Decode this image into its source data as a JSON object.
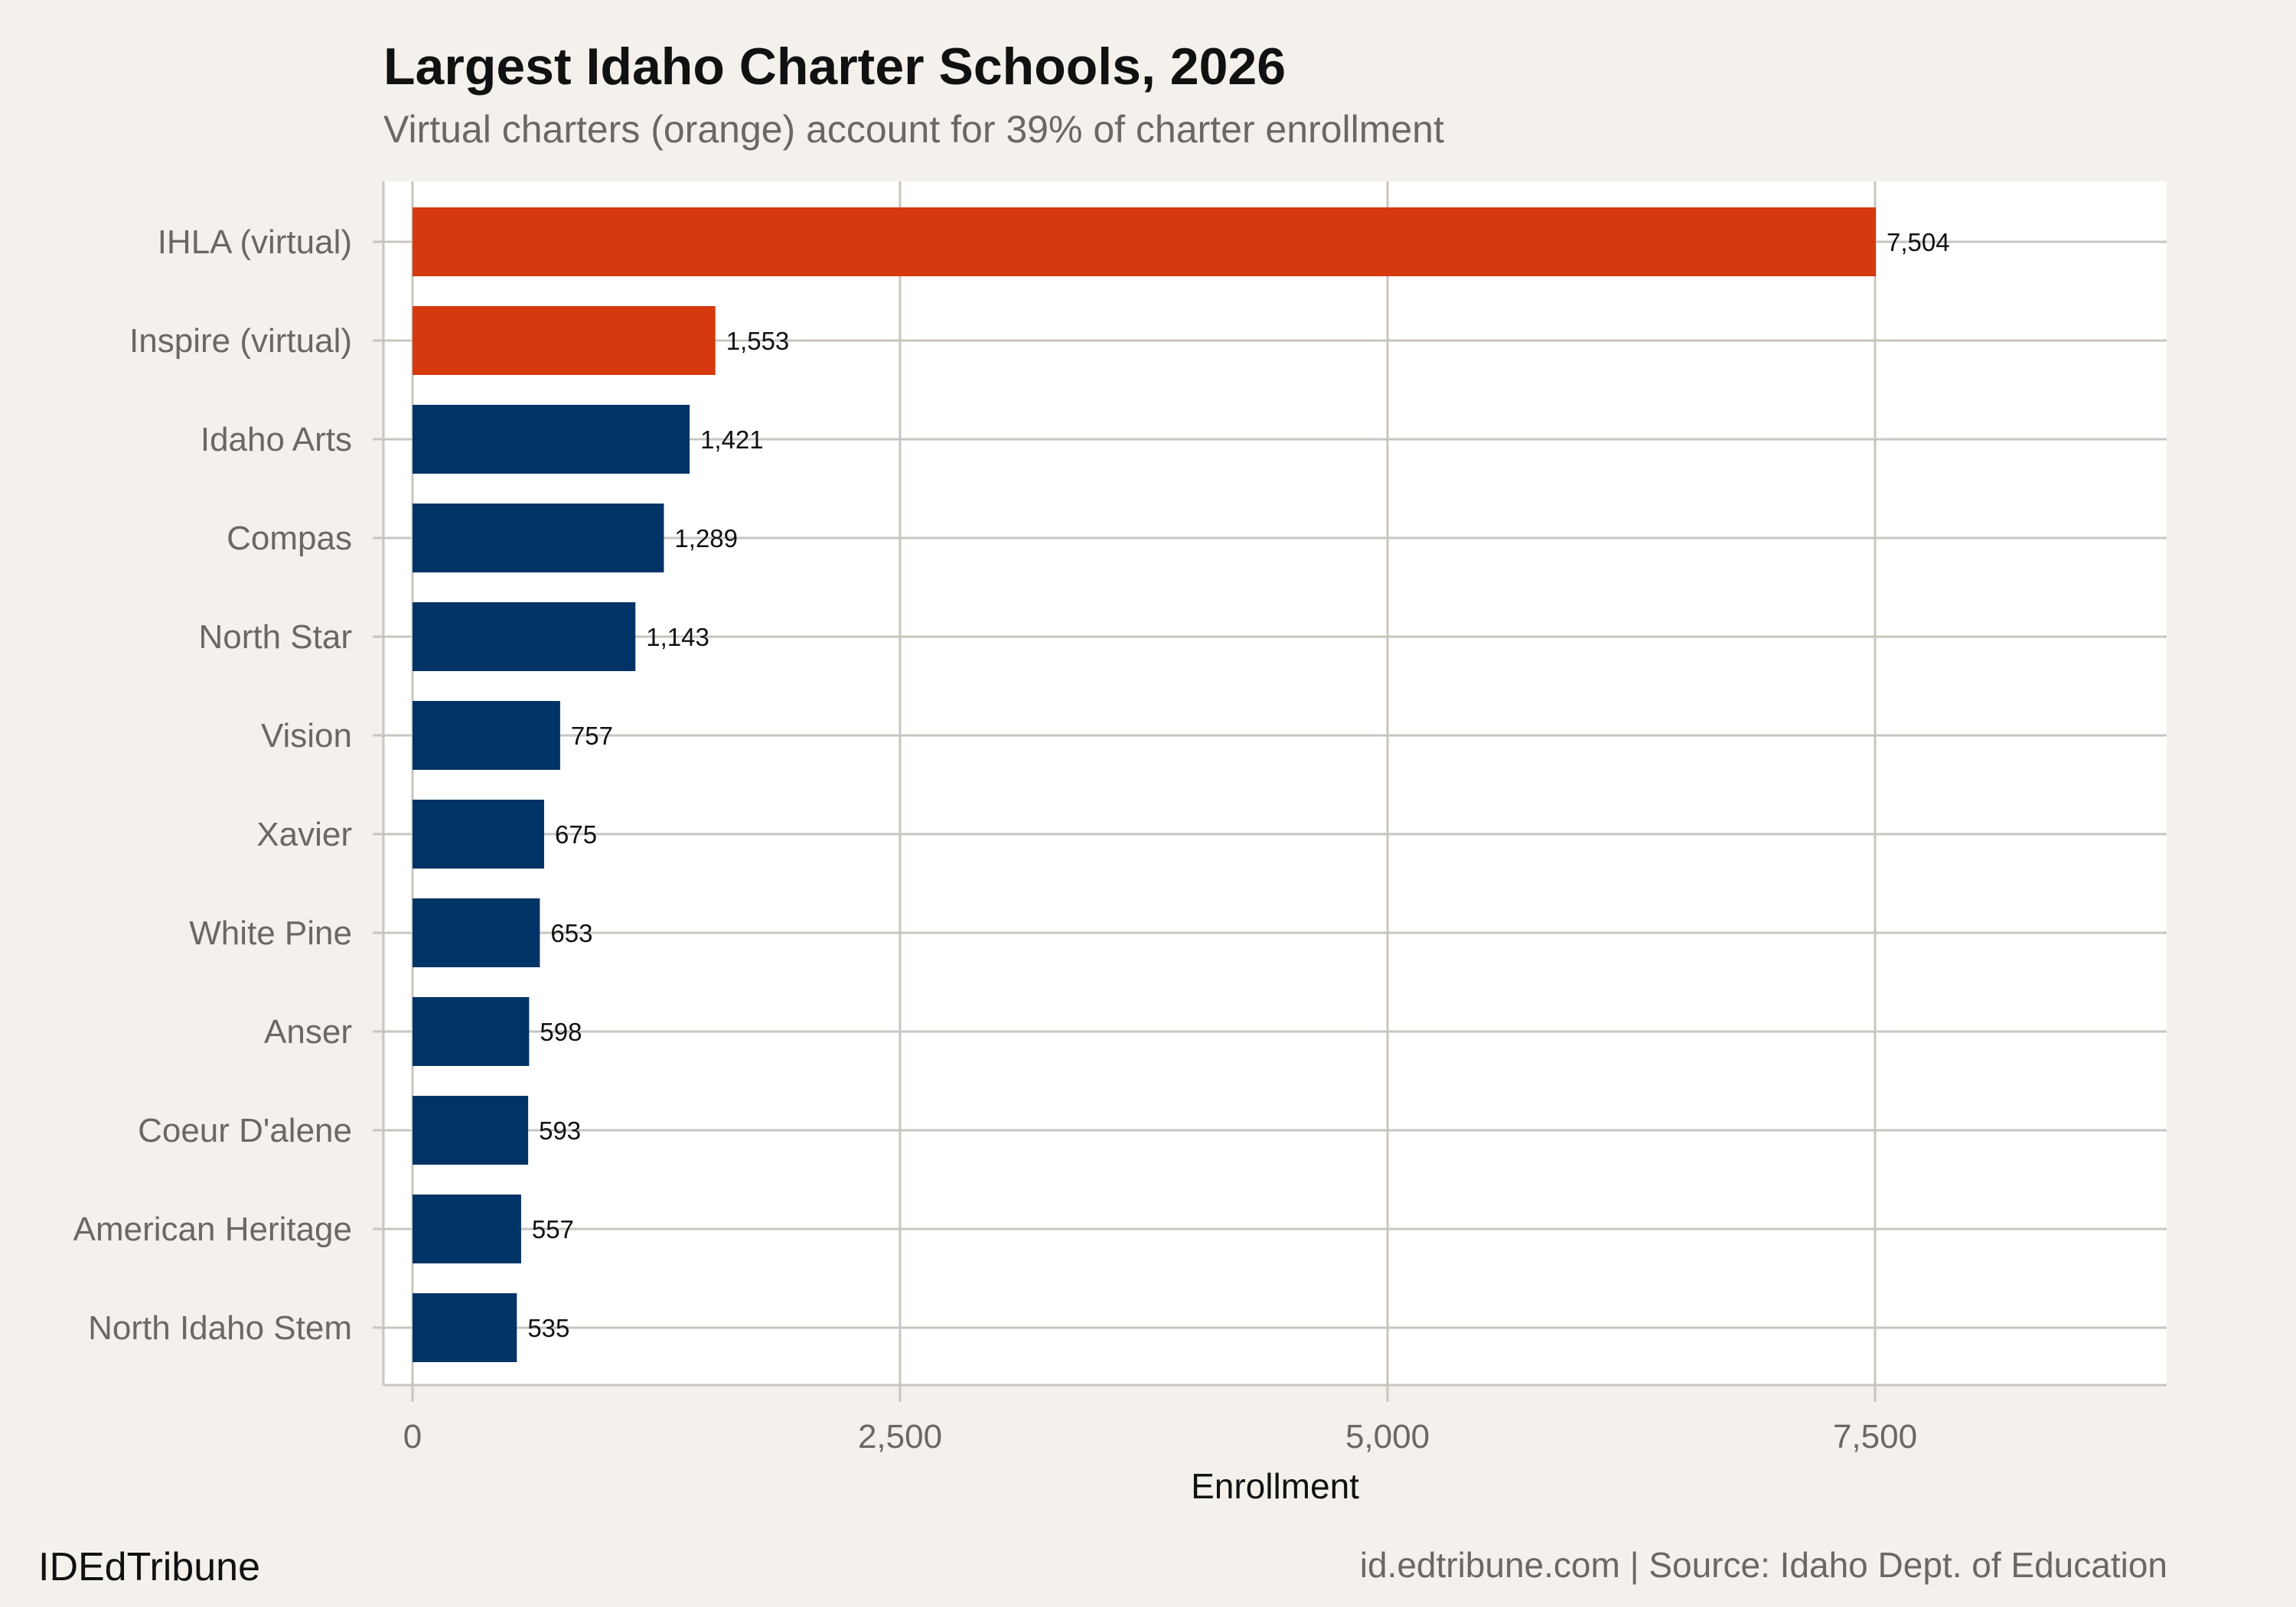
{
  "chart_data": {
    "type": "bar",
    "orientation": "horizontal",
    "title": "Largest Idaho Charter Schools, 2026",
    "subtitle": "Virtual charters (orange) account for 39% of charter enrollment",
    "xlabel": "Enrollment",
    "ylabel": "",
    "categories": [
      "IHLA (virtual)",
      "Inspire (virtual)",
      "Idaho Arts",
      "Compas",
      "North Star",
      "Vision",
      "Xavier",
      "White Pine",
      "Anser",
      "Coeur D'alene",
      "American Heritage",
      "North Idaho Stem"
    ],
    "values": [
      7504,
      1553,
      1421,
      1289,
      1143,
      757,
      675,
      653,
      598,
      593,
      557,
      535
    ],
    "value_labels": [
      "7,504",
      "1,553",
      "1,421",
      "1,289",
      "1,143",
      "757",
      "675",
      "653",
      "598",
      "593",
      "557",
      "535"
    ],
    "virtual": [
      true,
      true,
      false,
      false,
      false,
      false,
      false,
      false,
      false,
      false,
      false,
      false
    ],
    "xticks": [
      0,
      2500,
      5000,
      7500
    ],
    "xtick_labels": [
      "0",
      "2,500",
      "5,000",
      "7,500"
    ],
    "xlim": [
      0,
      9000
    ],
    "grid": true,
    "legend": "none",
    "colors": {
      "virtual": "#D5390E",
      "other": "#003366",
      "background": "#F4F1EC",
      "panel": "#FFFFFF",
      "grid": "#C9C5BE"
    }
  },
  "footer": {
    "brand": "IDEdTribune",
    "caption": "id.edtribune.com | Source: Idaho Dept. of Education"
  }
}
